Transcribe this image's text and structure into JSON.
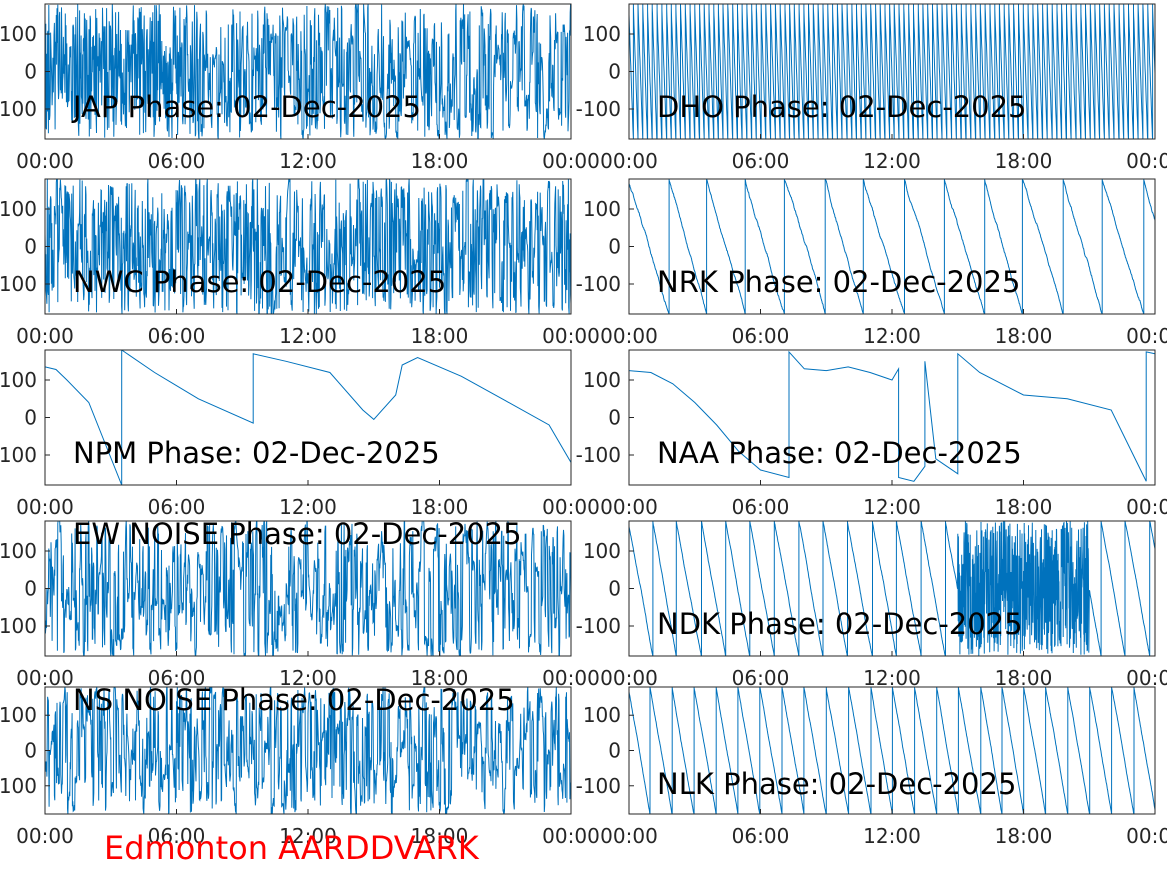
{
  "figure": {
    "footer_text": "Edmonton AARDDVARK",
    "footer_color": "#ff0000",
    "line_color": "#0072bd",
    "axes_color": "#262626",
    "title_color": "#000000"
  },
  "chart_data": [
    {
      "type": "line",
      "id": "jap",
      "title": "JAP Phase: 02-Dec-2025",
      "x_ticks": [
        "00:00",
        "06:00",
        "12:00",
        "18:00",
        "00:00"
      ],
      "xlim": [
        0,
        24
      ],
      "y_ticks": [
        "100",
        "0",
        "-100"
      ],
      "y_tick_values": [
        100,
        0,
        -100
      ],
      "ylim": [
        -180,
        180
      ],
      "grid": false,
      "pattern": {
        "kind": "noise",
        "dense_until": 7,
        "density_after": 0.55,
        "seed": 11
      }
    },
    {
      "type": "line",
      "id": "dho",
      "title": "DHO Phase: 02-Dec-2025",
      "x_ticks": [
        "00:00",
        "06:00",
        "12:00",
        "18:00",
        "00:00"
      ],
      "xlim": [
        0,
        24
      ],
      "y_ticks": [
        "100",
        "0",
        "-100"
      ],
      "y_tick_values": [
        100,
        0,
        -100
      ],
      "ylim": [
        -180,
        180
      ],
      "grid": false,
      "pattern": {
        "kind": "drift",
        "wraps_per_hour": 4.6,
        "direction": -1,
        "noise": 10,
        "seed": 12
      }
    },
    {
      "type": "line",
      "id": "nwc",
      "title": "NWC Phase: 02-Dec-2025",
      "x_ticks": [
        "00:00",
        "06:00",
        "12:00",
        "18:00",
        "00:00"
      ],
      "xlim": [
        0,
        24
      ],
      "y_ticks": [
        "100",
        "0",
        "-100"
      ],
      "y_tick_values": [
        100,
        0,
        -100
      ],
      "ylim": [
        -180,
        180
      ],
      "grid": false,
      "pattern": {
        "kind": "noise",
        "dense_until": 0,
        "density_after": 0.65,
        "seed": 13
      }
    },
    {
      "type": "line",
      "id": "nrk",
      "title": "NRK Phase: 02-Dec-2025",
      "x_ticks": [
        "00:00",
        "06:00",
        "12:00",
        "18:00",
        "00:00"
      ],
      "xlim": [
        0,
        24
      ],
      "y_ticks": [
        "100",
        "0",
        "-100"
      ],
      "y_tick_values": [
        100,
        0,
        -100
      ],
      "ylim": [
        -180,
        180
      ],
      "grid": false,
      "pattern": {
        "kind": "drift",
        "wraps_per_hour": 0.55,
        "direction": -1,
        "noise": 8,
        "seed": 14
      }
    },
    {
      "type": "line",
      "id": "npm",
      "title": "NPM Phase: 02-Dec-2025",
      "x_ticks": [
        "00:00",
        "06:00",
        "12:00",
        "18:00",
        "00:00"
      ],
      "xlim": [
        0,
        24
      ],
      "y_ticks": [
        "100",
        "0",
        "-100"
      ],
      "y_tick_values": [
        100,
        0,
        -100
      ],
      "ylim": [
        -180,
        180
      ],
      "grid": false,
      "x": [
        0,
        0.5,
        1,
        2,
        3.5,
        3.5,
        5,
        7,
        9.5,
        9.5,
        11,
        13,
        14.5,
        15,
        16,
        16.3,
        17,
        19,
        21,
        23,
        24
      ],
      "y": [
        135,
        128,
        100,
        40,
        -180,
        180,
        120,
        50,
        -15,
        170,
        150,
        120,
        20,
        -5,
        60,
        140,
        160,
        110,
        45,
        -20,
        -120
      ]
    },
    {
      "type": "line",
      "id": "naa",
      "title": "NAA Phase: 02-Dec-2025",
      "x_ticks": [
        "00:00",
        "06:00",
        "12:00",
        "18:00",
        "00:00"
      ],
      "xlim": [
        0,
        24
      ],
      "y_ticks": [
        "100",
        "0",
        "-100"
      ],
      "y_tick_values": [
        100,
        0,
        -100
      ],
      "ylim": [
        -180,
        180
      ],
      "grid": false,
      "x": [
        0,
        1,
        2,
        3,
        4,
        5,
        6,
        7.3,
        7.3,
        8,
        9,
        10,
        11,
        12,
        12.3,
        12.3,
        13,
        13.5,
        13.5,
        14,
        15,
        15,
        16,
        18,
        20,
        22,
        23.6,
        23.6,
        24
      ],
      "y": [
        125,
        120,
        90,
        40,
        -20,
        -90,
        -140,
        -160,
        175,
        130,
        125,
        135,
        120,
        100,
        130,
        -160,
        -170,
        -130,
        150,
        -110,
        -150,
        170,
        120,
        60,
        50,
        20,
        -170,
        175,
        170
      ]
    },
    {
      "type": "line",
      "id": "ew-noise",
      "title": "EW NOISE Phase: 02-Dec-2025",
      "x_ticks": [
        "00:00",
        "06:00",
        "12:00",
        "18:00",
        "00:00"
      ],
      "xlim": [
        0,
        24
      ],
      "y_ticks": [
        "100",
        "0",
        "-100"
      ],
      "y_tick_values": [
        100,
        0,
        -100
      ],
      "ylim": [
        -180,
        180
      ],
      "grid": false,
      "pattern": {
        "kind": "noise",
        "dense_until": 0,
        "density_after": 0.45,
        "seed": 15
      }
    },
    {
      "type": "line",
      "id": "ndk",
      "title": "NDK Phase: 02-Dec-2025",
      "x_ticks": [
        "00:00",
        "06:00",
        "12:00",
        "18:00",
        "00:00"
      ],
      "xlim": [
        0,
        24
      ],
      "y_ticks": [
        "100",
        "0",
        "-100"
      ],
      "y_tick_values": [
        100,
        0,
        -100
      ],
      "ylim": [
        -180,
        180
      ],
      "grid": false,
      "pattern": {
        "kind": "drift",
        "wraps_per_hour": 0.9,
        "direction": -1,
        "noise": 6,
        "noise_from": 15,
        "noise_to": 21,
        "seed": 16
      }
    },
    {
      "type": "line",
      "id": "ns-noise",
      "title": "NS NOISE Phase: 02-Dec-2025",
      "x_ticks": [
        "00:00",
        "06:00",
        "12:00",
        "18:00",
        "00:00"
      ],
      "xlim": [
        0,
        24
      ],
      "y_ticks": [
        "100",
        "0",
        "-100"
      ],
      "y_tick_values": [
        100,
        0,
        -100
      ],
      "ylim": [
        -180,
        180
      ],
      "grid": false,
      "pattern": {
        "kind": "noise",
        "dense_until": 0,
        "density_after": 0.45,
        "seed": 17
      }
    },
    {
      "type": "line",
      "id": "nlk",
      "title": "NLK Phase: 02-Dec-2025",
      "x_ticks": [
        "00:00",
        "06:00",
        "12:00",
        "18:00",
        "00:00"
      ],
      "xlim": [
        0,
        24
      ],
      "y_ticks": [
        "100",
        "0",
        "-100"
      ],
      "y_tick_values": [
        100,
        0,
        -100
      ],
      "ylim": [
        -180,
        180
      ],
      "grid": false,
      "pattern": {
        "kind": "drift",
        "wraps_per_hour": 1.0,
        "direction": -1,
        "noise": 5,
        "seed": 18
      }
    }
  ]
}
